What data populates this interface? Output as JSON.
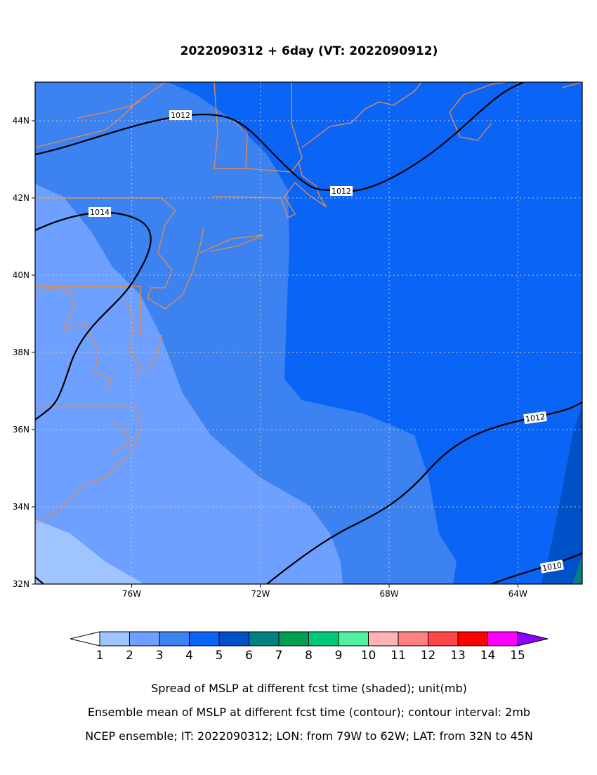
{
  "map": {
    "title": "2022090312 + 6day (VT: 2022090912)",
    "xlim": [
      -79,
      -62
    ],
    "ylim": [
      32,
      45
    ],
    "xticks": [
      {
        "value": -76,
        "label": "76W"
      },
      {
        "value": -72,
        "label": "72W"
      },
      {
        "value": -68,
        "label": "68W"
      },
      {
        "value": -64,
        "label": "64W"
      }
    ],
    "yticks": [
      {
        "value": 32,
        "label": "32N"
      },
      {
        "value": 34,
        "label": "34N"
      },
      {
        "value": 36,
        "label": "36N"
      },
      {
        "value": 38,
        "label": "38N"
      },
      {
        "value": 40,
        "label": "40N"
      },
      {
        "value": 42,
        "label": "42N"
      },
      {
        "value": 44,
        "label": "44N"
      }
    ],
    "grid": true,
    "contour_labels": [
      1012,
      1012,
      1014,
      1012,
      1010
    ],
    "colorbar": {
      "levels": [
        1,
        2,
        3,
        4,
        5,
        6,
        7,
        8,
        9,
        10,
        11,
        12,
        13,
        14,
        15
      ],
      "colors": [
        "#ffffff",
        "#a0c4ff",
        "#6ea0ff",
        "#3c82f0",
        "#0a64f5",
        "#0050c8",
        "#008080",
        "#00a050",
        "#00c878",
        "#50f0a0",
        "#ffb4b4",
        "#ff8080",
        "#ff4646",
        "#ff0000",
        "#ff00ff",
        "#8c00ff"
      ]
    },
    "captions": [
      "Spread of MSLP at different fcst time (shaded); unit(mb)",
      "Ensemble mean of MSLP at different fcst time (contour); contour interval: 2mb",
      "NCEP ensemble; IT: 2022090312; LON: from 79W to 62W; LAT: from 32N to 45N"
    ]
  }
}
